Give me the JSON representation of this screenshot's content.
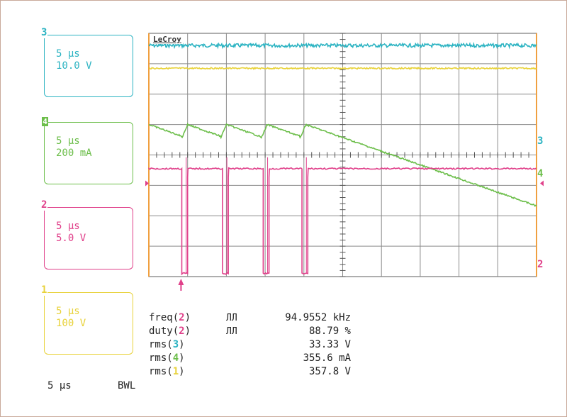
{
  "brand": "LeCroy",
  "channels": [
    {
      "id": "3",
      "timebase": "5 µs",
      "scale": "10.0 V",
      "color": "#2bb3c2"
    },
    {
      "id": "4",
      "timebase": "5 µs",
      "scale": "200 mA",
      "color": "#6cbe4a"
    },
    {
      "id": "2",
      "timebase": "5 µs",
      "scale": "5.0 V",
      "color": "#e0408a"
    },
    {
      "id": "1",
      "timebase": "5 µs",
      "scale": "100 V",
      "color": "#e8d23a"
    }
  ],
  "measurements": [
    {
      "label": "freq(",
      "ch": "2",
      "close": ")",
      "symbol": "ЛЛ",
      "value": "94.9552 kHz"
    },
    {
      "label": "duty(",
      "ch": "2",
      "close": ")",
      "symbol": "ЛЛ",
      "value": "88.79 %"
    },
    {
      "label": "rms(",
      "ch": "3",
      "close": ")",
      "symbol": "",
      "value": "33.33 V"
    },
    {
      "label": "rms(",
      "ch": "4",
      "close": ")",
      "symbol": "",
      "value": "355.6 mA"
    },
    {
      "label": "rms(",
      "ch": "1",
      "close": ")",
      "symbol": "",
      "value": "357.8 V"
    }
  ],
  "footer": {
    "timebase": "5 µs",
    "bwl": "BWL"
  },
  "right_markers": [
    "3",
    "4",
    "2"
  ],
  "chart_data": {
    "type": "line",
    "title": "",
    "grid": true,
    "divisions": {
      "x": 10,
      "y": 8
    },
    "time_per_div_us": 5,
    "frequency_khz": 94.9552,
    "duty_percent": 88.79,
    "series": [
      {
        "name": "3",
        "color": "#2bb3c2",
        "shape": "flat-noisy",
        "level_div": 7.6
      },
      {
        "name": "1",
        "color": "#e8d23a",
        "shape": "flat",
        "level_div": 6.85
      },
      {
        "name": "4",
        "color": "#6cbe4a",
        "shape": "sawtooth",
        "low_div": 4.55,
        "high_div": 5.0,
        "rise_times_div": [
          1.0,
          2.0,
          3.05,
          4.05
        ]
      },
      {
        "name": "2",
        "color": "#e0408a",
        "shape": "pulse",
        "high_div": 3.55,
        "low_div": 0.1,
        "edges_div": [
          [
            0.85,
            1.0
          ],
          [
            1.9,
            2.05
          ],
          [
            2.95,
            3.1
          ],
          [
            3.95,
            4.1
          ]
        ]
      }
    ]
  }
}
